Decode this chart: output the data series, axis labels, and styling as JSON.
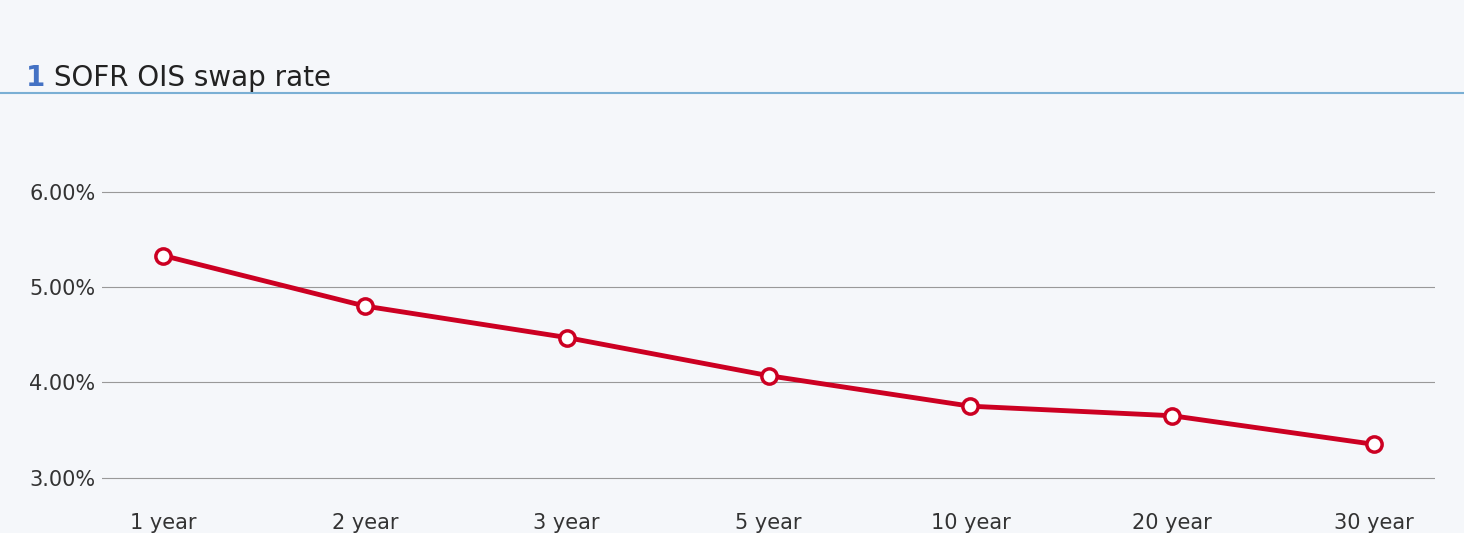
{
  "title_number": "1",
  "title_text": " SOFR OIS swap rate",
  "categories": [
    "1 year",
    "2 year",
    "3 year",
    "5 year",
    "10 year",
    "20 year",
    "30 year"
  ],
  "values": [
    0.0533,
    0.048,
    0.0447,
    0.0407,
    0.0375,
    0.0365,
    0.0335
  ],
  "line_color": "#CC0022",
  "marker_fill": "#ffffff",
  "marker_edge_color": "#CC0022",
  "background_color": "#f5f7fa",
  "plot_bg_color": "#f5f7fa",
  "title_color": "#222222",
  "title_number_color": "#4472C4",
  "grid_color": "#999999",
  "separator_color": "#7aafd4",
  "ylim": [
    0.027,
    0.065
  ],
  "yticks": [
    0.03,
    0.04,
    0.05,
    0.06
  ],
  "ytick_labels": [
    "3.00%",
    "4.00%",
    "5.00%",
    "6.00%"
  ],
  "title_fontsize": 20,
  "tick_fontsize": 15,
  "line_width": 3.5,
  "marker_size": 11,
  "marker_edge_width": 2.5
}
